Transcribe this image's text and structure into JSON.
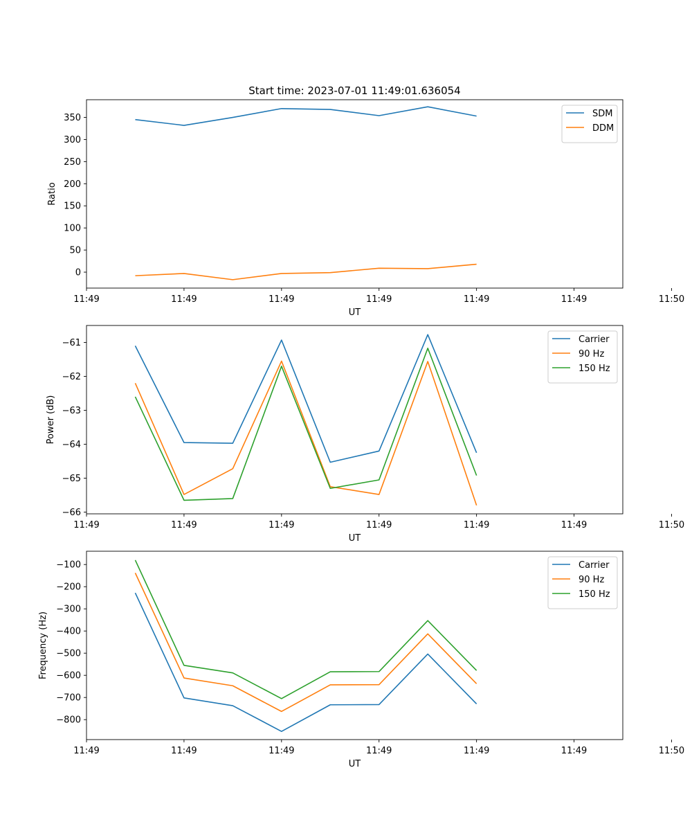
{
  "chart_data": [
    {
      "type": "line",
      "title": "Start time: 2023-07-01 11:49:01.636054",
      "xlabel": "UT",
      "ylabel": "Ratio",
      "xlim": [
        0,
        11
      ],
      "ylim": [
        -36,
        390
      ],
      "x": [
        1,
        2,
        3,
        4,
        5,
        6,
        7,
        8
      ],
      "xticks": [
        0,
        2,
        4,
        6,
        8,
        10,
        12
      ],
      "xtick_labels": [
        "11:49",
        "11:49",
        "11:49",
        "11:49",
        "11:49",
        "11:49",
        "11:50"
      ],
      "yticks": [
        0,
        50,
        100,
        150,
        200,
        250,
        300,
        350
      ],
      "ytick_labels": [
        "0",
        "50",
        "100",
        "150",
        "200",
        "250",
        "300",
        "350"
      ],
      "legend": "top-right",
      "series": [
        {
          "name": "SDM",
          "color": "#1f77b4",
          "values": [
            345,
            332,
            350,
            370,
            368,
            354,
            374,
            353
          ]
        },
        {
          "name": "DDM",
          "color": "#ff7f0e",
          "values": [
            -8,
            -3,
            -17,
            -3,
            -1,
            9,
            8,
            18
          ]
        }
      ]
    },
    {
      "type": "line",
      "title": "",
      "xlabel": "UT",
      "ylabel": "Power (dB)",
      "xlim": [
        0,
        11
      ],
      "ylim": [
        -66.05,
        -60.5
      ],
      "x": [
        1,
        2,
        3,
        4,
        5,
        6,
        7,
        8
      ],
      "xticks": [
        0,
        2,
        4,
        6,
        8,
        10,
        12
      ],
      "xtick_labels": [
        "11:49",
        "11:49",
        "11:49",
        "11:49",
        "11:49",
        "11:49",
        "11:50"
      ],
      "yticks": [
        -66,
        -65,
        -64,
        -63,
        -62,
        -61
      ],
      "ytick_labels": [
        "−66",
        "−65",
        "−64",
        "−63",
        "−62",
        "−61"
      ],
      "legend": "top-right",
      "series": [
        {
          "name": "Carrier",
          "color": "#1f77b4",
          "values": [
            -61.1,
            -63.95,
            -63.97,
            -60.93,
            -64.53,
            -64.2,
            -60.77,
            -64.25
          ]
        },
        {
          "name": "90 Hz",
          "color": "#ff7f0e",
          "values": [
            -62.2,
            -65.48,
            -64.72,
            -61.55,
            -65.25,
            -65.48,
            -61.56,
            -65.8
          ]
        },
        {
          "name": "150 Hz",
          "color": "#2ca02c",
          "values": [
            -62.6,
            -65.65,
            -65.6,
            -61.7,
            -65.3,
            -65.05,
            -61.17,
            -64.92
          ]
        }
      ]
    },
    {
      "type": "line",
      "title": "",
      "xlabel": "UT",
      "ylabel": "Frequency (Hz)",
      "xlim": [
        0,
        11
      ],
      "ylim": [
        -890,
        -40
      ],
      "x": [
        1,
        2,
        3,
        4,
        5,
        6,
        7,
        8
      ],
      "xticks": [
        0,
        2,
        4,
        6,
        8,
        10,
        12
      ],
      "xtick_labels": [
        "11:49",
        "11:49",
        "11:49",
        "11:49",
        "11:49",
        "11:49",
        "11:50"
      ],
      "yticks": [
        -800,
        -700,
        -600,
        -500,
        -400,
        -300,
        -200,
        -100
      ],
      "ytick_labels": [
        "−800",
        "−700",
        "−600",
        "−500",
        "−400",
        "−300",
        "−200",
        "−100"
      ],
      "legend": "top-right",
      "series": [
        {
          "name": "Carrier",
          "color": "#1f77b4",
          "values": [
            -228,
            -702,
            -737,
            -853,
            -733,
            -732,
            -504,
            -729
          ]
        },
        {
          "name": "90 Hz",
          "color": "#ff7f0e",
          "values": [
            -138,
            -612,
            -647,
            -763,
            -643,
            -642,
            -413,
            -638
          ]
        },
        {
          "name": "150 Hz",
          "color": "#2ca02c",
          "values": [
            -80,
            -555,
            -589,
            -705,
            -584,
            -583,
            -353,
            -578
          ]
        }
      ]
    }
  ]
}
